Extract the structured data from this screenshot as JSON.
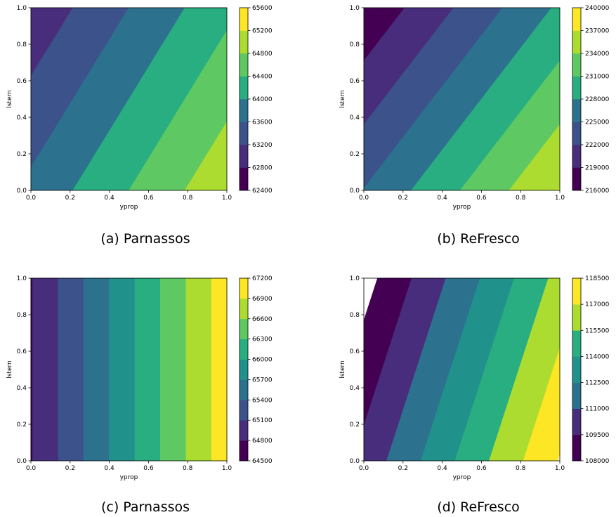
{
  "palette": [
    "#440154",
    "#472d7b",
    "#3b528b",
    "#2c728e",
    "#21918c",
    "#28ae80",
    "#5ec962",
    "#addc30",
    "#fde725"
  ],
  "chart_data": [
    {
      "type": "contour",
      "caption": "(a) Parnassos",
      "xlabel": "yprop",
      "ylabel": "lstern",
      "xlim": [
        0.0,
        1.0
      ],
      "ylim": [
        0.0,
        1.0
      ],
      "xticks": [
        "0.0",
        "0.2",
        "0.4",
        "0.6",
        "0.8",
        "1.0"
      ],
      "yticks": [
        "0.0",
        "0.2",
        "0.4",
        "0.6",
        "0.8",
        "1.0"
      ],
      "field": {
        "c0": 63700,
        "cx": 1400,
        "cy": -800
      },
      "levels": [
        62400,
        62800,
        63200,
        63600,
        64000,
        64400,
        64800,
        65200,
        65600
      ],
      "colorbar_ticks": [
        "62400",
        "62800",
        "63200",
        "63600",
        "64000",
        "64400",
        "64800",
        "65200",
        "65600"
      ]
    },
    {
      "type": "contour",
      "caption": "(b) ReFresco",
      "xlabel": "yprop",
      "ylabel": "lstern",
      "xlim": [
        0.0,
        1.0
      ],
      "ylim": [
        0.0,
        1.0
      ],
      "xticks": [
        "0.0",
        "0.2",
        "0.4",
        "0.6",
        "0.8",
        "1.0"
      ],
      "yticks": [
        "0.0",
        "0.2",
        "0.4",
        "0.6",
        "0.8",
        "1.0"
      ],
      "field": {
        "c0": 225100,
        "cx": 12000,
        "cy": -8600
      },
      "levels": [
        216000,
        219000,
        222000,
        225000,
        228000,
        231000,
        234000,
        237000,
        240000
      ],
      "colorbar_ticks": [
        "216000",
        "219000",
        "222000",
        "225000",
        "228000",
        "231000",
        "234000",
        "237000",
        "240000"
      ]
    },
    {
      "type": "contour",
      "caption": "(c) Parnassos",
      "xlabel": "yprop",
      "ylabel": "lstern",
      "xlim": [
        0.0,
        1.0
      ],
      "ylim": [
        0.0,
        1.0
      ],
      "xticks": [
        "0.0",
        "0.2",
        "0.4",
        "0.6",
        "0.8",
        "1.0"
      ],
      "yticks": [
        "0.0",
        "0.2",
        "0.4",
        "0.6",
        "0.8",
        "1.0"
      ],
      "field": {
        "c0": 64780,
        "cx": 2300,
        "cy": 0
      },
      "levels": [
        64500,
        64800,
        65100,
        65400,
        65700,
        66000,
        66300,
        66600,
        66900,
        67200
      ],
      "colorbar_ticks": [
        "64500",
        "64800",
        "65100",
        "65400",
        "65700",
        "66000",
        "66300",
        "66600",
        "66900",
        "67200"
      ]
    },
    {
      "type": "contour",
      "caption": "(d) ReFresco",
      "xlabel": "yprop",
      "ylabel": "lstern",
      "xlim": [
        0.0,
        1.0
      ],
      "ylim": [
        0.0,
        1.0
      ],
      "xticks": [
        "0.0",
        "0.2",
        "0.4",
        "0.6",
        "0.8",
        "1.0"
      ],
      "yticks": [
        "0.0",
        "0.2",
        "0.4",
        "0.6",
        "0.8",
        "1.0"
      ],
      "field": {
        "c0": 110000,
        "cx": 8600,
        "cy": -2600
      },
      "levels": [
        108000,
        109500,
        111000,
        112500,
        114000,
        115500,
        117000,
        118500
      ],
      "colorbar_ticks": [
        "108000",
        "109500",
        "111000",
        "112500",
        "114000",
        "115500",
        "117000",
        "118500"
      ]
    }
  ]
}
